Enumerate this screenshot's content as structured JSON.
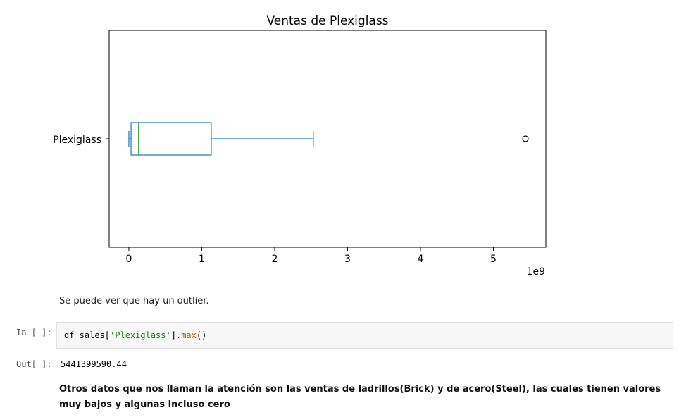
{
  "cells": {
    "md_outlier": "Se puede ver que hay un outlier.",
    "input_prompt": "In [ ]:",
    "code": {
      "var": "df_sales",
      "open": "[",
      "key": "'Plexiglass'",
      "close": "].",
      "fn": "max",
      "call": "()"
    },
    "output_prompt": "Out[ ]:",
    "output_value": "5441399590.44",
    "md_attention": "Otros datos que nos llaman la atención son las ventas de ladrillos(Brick) y de acero(Steel), las cuales tienen valores muy bajos y algunas incluso cero"
  },
  "colors": {
    "box": "#1f77b4",
    "median": "#2ca02c"
  },
  "chart_data": {
    "type": "box",
    "orientation": "horizontal",
    "title": "Ventas de Plexiglass",
    "category": "Plexiglass",
    "x_ticks": [
      "0",
      "1",
      "2",
      "3",
      "4",
      "5"
    ],
    "x_offset_label": "1e9",
    "xlim": [
      -0.27,
      5.72
    ],
    "stats": {
      "whisker_low": 0.0,
      "q1": 0.03,
      "median": 0.135,
      "q3": 1.13,
      "whisker_high": 2.53,
      "outliers": [
        5.44
      ]
    }
  }
}
